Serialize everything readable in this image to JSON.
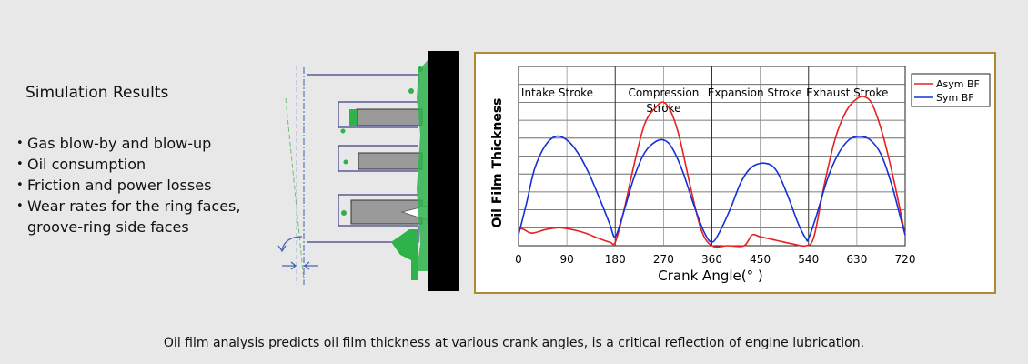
{
  "left_panel": {
    "title": "Simulation Results",
    "bullets": [
      "Gas blow-by and blow-up",
      "Oil consumption",
      "Friction and power losses",
      "Wear rates for the ring faces, groove-ring side faces"
    ]
  },
  "caption": "Oil film analysis predicts oil film thickness at various crank angles, is a critical reflection of engine lubrication.",
  "colors": {
    "asym": "#e8201e",
    "sym": "#1530d8",
    "frame": "#b08a2f",
    "ring_green": "#2db34a"
  },
  "chart_data": {
    "type": "line",
    "xlabel": "Crank Angle(° )",
    "ylabel": "Oil Film Thickness",
    "xlim": [
      0,
      720
    ],
    "ylim": [
      0,
      10
    ],
    "xticks": [
      0,
      90,
      180,
      270,
      360,
      450,
      540,
      630,
      720
    ],
    "grid": true,
    "legend": "top-right",
    "strokes": [
      {
        "lines": [
          "Intake Stroke"
        ],
        "center": 72
      },
      {
        "lines": [
          "Compression",
          "Stroke"
        ],
        "center": 270
      },
      {
        "lines": [
          "Expansion Stroke"
        ],
        "center": 440
      },
      {
        "lines": [
          "Exhaust Stroke"
        ],
        "center": 612
      }
    ],
    "series": [
      {
        "name": "Asym BF",
        "x": [
          0,
          10,
          25,
          50,
          75,
          100,
          125,
          150,
          170,
          180,
          195,
          215,
          235,
          255,
          270,
          285,
          300,
          320,
          340,
          360,
          390,
          420,
          435,
          450,
          480,
          510,
          535,
          550,
          570,
          590,
          610,
          630,
          645,
          660,
          680,
          700,
          720
        ],
        "y": [
          1.0,
          0.9,
          0.7,
          0.9,
          1.0,
          0.9,
          0.7,
          0.4,
          0.2,
          0.2,
          1.8,
          4.5,
          6.8,
          7.7,
          8.0,
          7.4,
          6.0,
          3.3,
          0.9,
          0.0,
          0.0,
          0.0,
          0.6,
          0.5,
          0.3,
          0.1,
          0.0,
          0.5,
          3.5,
          6.0,
          7.5,
          8.2,
          8.3,
          7.8,
          6.0,
          3.5,
          0.6
        ]
      },
      {
        "name": "Sym BF",
        "x": [
          0,
          15,
          30,
          50,
          70,
          90,
          110,
          130,
          150,
          170,
          180,
          195,
          215,
          235,
          255,
          270,
          285,
          305,
          325,
          345,
          360,
          375,
          395,
          415,
          435,
          460,
          480,
          500,
          520,
          535,
          540,
          555,
          575,
          595,
          615,
          635,
          655,
          675,
          695,
          710,
          720
        ],
        "y": [
          0.6,
          2.4,
          4.3,
          5.6,
          6.1,
          5.9,
          5.2,
          4.1,
          2.7,
          1.2,
          0.5,
          1.8,
          3.8,
          5.2,
          5.8,
          5.9,
          5.5,
          4.2,
          2.4,
          0.8,
          0.2,
          0.8,
          2.1,
          3.6,
          4.4,
          4.6,
          4.2,
          2.9,
          1.3,
          0.4,
          0.4,
          1.7,
          3.7,
          5.1,
          5.9,
          6.1,
          5.9,
          5.1,
          3.4,
          1.7,
          0.6
        ]
      }
    ]
  }
}
